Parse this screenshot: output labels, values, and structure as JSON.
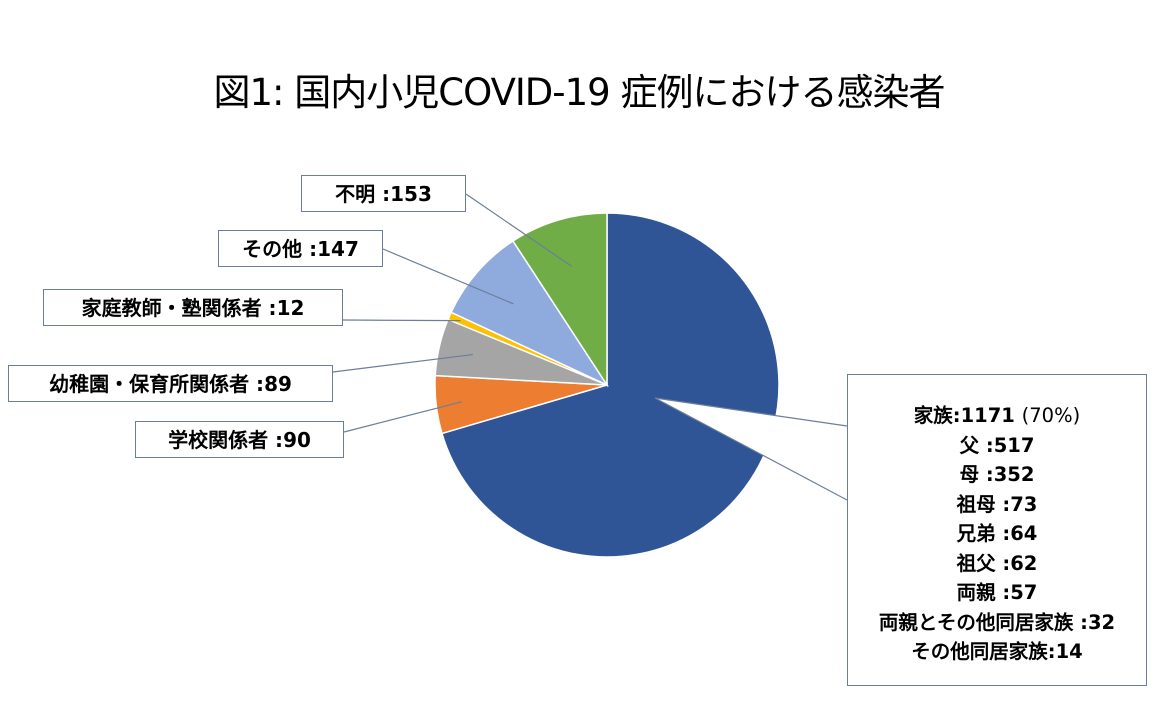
{
  "title": "図1: 国内小児COVID-19 症例における感染者",
  "chart_data": {
    "type": "pie",
    "title": "図1: 国内小児COVID-19 症例における感染者",
    "colors": [
      "#2F5597",
      "#ED7D31",
      "#A5A5A5",
      "#FFC000",
      "#8FAADC",
      "#70AD47"
    ],
    "slices": [
      {
        "label": "家族",
        "value": 1171,
        "value_text": "1171",
        "percent_text": "(70%)"
      },
      {
        "label": "学校関係者",
        "value": 90,
        "value_text": "90"
      },
      {
        "label": "幼稚園・保育所関係者",
        "value": 89,
        "value_text": "89"
      },
      {
        "label": "家庭教師・塾関係者",
        "value": 12,
        "value_text": "12"
      },
      {
        "label": "その他",
        "value": 147,
        "value_text": "147"
      },
      {
        "label": "不明",
        "value": 153,
        "value_text": "153"
      }
    ],
    "family_breakdown": [
      {
        "label": "父",
        "value": 517,
        "value_text": "517"
      },
      {
        "label": "母",
        "value": 352,
        "value_text": "352"
      },
      {
        "label": "祖母",
        "value": 73,
        "value_text": "73"
      },
      {
        "label": "兄弟",
        "value": 64,
        "value_text": "64"
      },
      {
        "label": "祖父",
        "value": 62,
        "value_text": "62"
      },
      {
        "label": "両親",
        "value": 57,
        "value_text": "57"
      },
      {
        "label": "両親とその他同居家族",
        "value": 32,
        "value_text": "32"
      },
      {
        "label": "その他同居家族",
        "value": 14,
        "value_text": "14"
      }
    ]
  }
}
